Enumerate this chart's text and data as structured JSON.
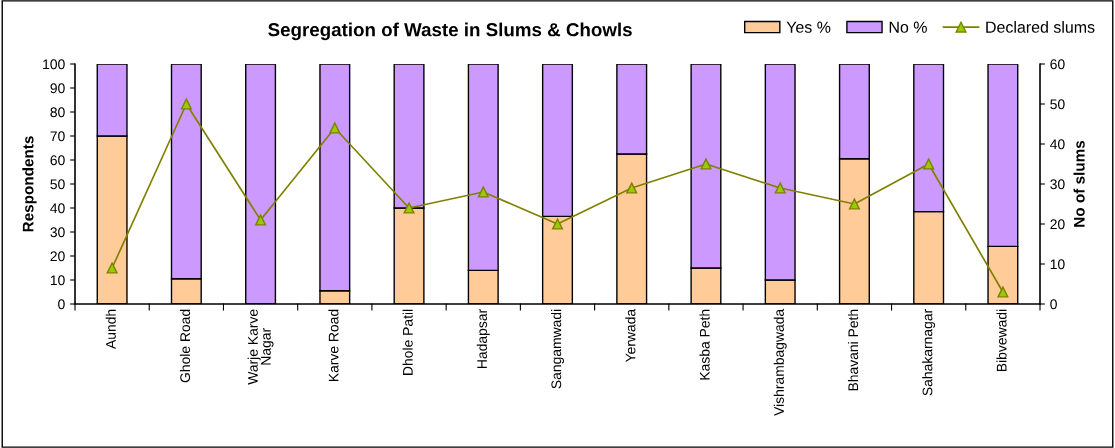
{
  "chart_data": {
    "type": "bar",
    "title": "Segregation of Waste in Slums & Chowls",
    "ylabel": "Respondents",
    "y2label": "No of slums",
    "categories": [
      "Aundh",
      "Ghole Road",
      "Warje Karve\nNagar",
      "Karve Road",
      "Dhole Patil",
      "Hadapsar",
      "Sangamwadi",
      "Yerwada",
      "Kasba Peth",
      "Vishrambagwada",
      "Bhavani Peth",
      "Sahakarnagar",
      "Bibvewadi"
    ],
    "stacked": true,
    "series": [
      {
        "name": "Yes %",
        "color": "#ffcc99",
        "values": [
          70,
          10.5,
          0,
          5.5,
          40,
          14,
          36.5,
          62.5,
          15,
          10,
          60.5,
          38.5,
          24
        ]
      },
      {
        "name": "No %",
        "color": "#cc99ff",
        "values": [
          30,
          89.5,
          100,
          94.5,
          60,
          86,
          63.5,
          37.5,
          85,
          90,
          39.5,
          61.5,
          76
        ]
      },
      {
        "name": "Declared slums",
        "type": "line",
        "axis": "y2",
        "color": "#808000",
        "marker": "triangle",
        "values": [
          9,
          50,
          21,
          44,
          24,
          28,
          20,
          29,
          35,
          29,
          25,
          35,
          3
        ]
      }
    ],
    "ylim": [
      0,
      100
    ],
    "yticks": [
      0,
      10,
      20,
      30,
      40,
      50,
      60,
      70,
      80,
      90,
      100
    ],
    "y2lim": [
      0,
      60
    ],
    "y2ticks": [
      0,
      10,
      20,
      30,
      40,
      50,
      60
    ],
    "grid": false,
    "legend": "top right"
  }
}
